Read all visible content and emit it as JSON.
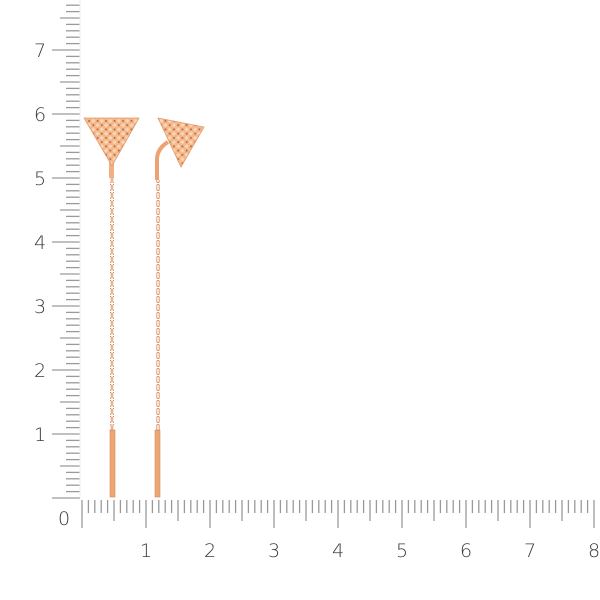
{
  "ruler": {
    "vertical_labels": [
      "0",
      "1",
      "2",
      "3",
      "4",
      "5",
      "6",
      "7"
    ],
    "horizontal_labels": [
      "1",
      "2",
      "3",
      "4",
      "5",
      "6",
      "7",
      "8"
    ],
    "tick_color": "#9a9a9a"
  },
  "product": {
    "colors": {
      "gold": "#f0a878",
      "gold_dark": "#c77a4e",
      "gold_light": "#fbd2b0"
    },
    "items": [
      "left-earring-triangle-pendant",
      "right-earring-triangle-pendant"
    ]
  }
}
